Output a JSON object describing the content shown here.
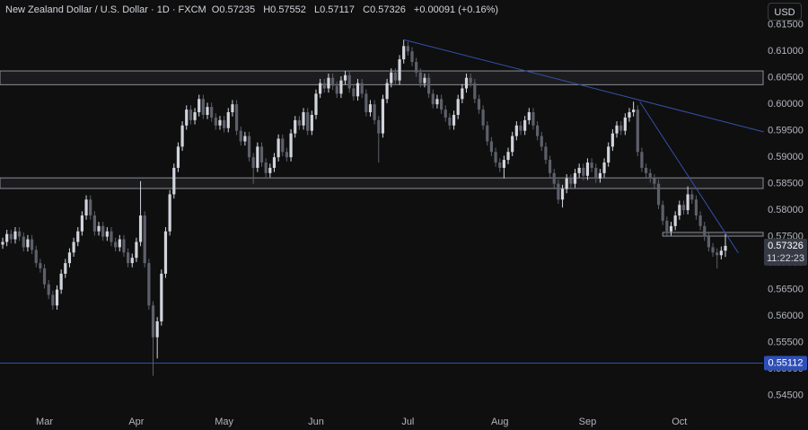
{
  "header": {
    "symbol": "New Zealand Dollar / U.S. Dollar · 1D · FXCM",
    "o_label": "O",
    "h_label": "H",
    "l_label": "L",
    "c_label": "C",
    "change": "+0.00091 (+0.16%)",
    "currency": "USD",
    "countdown": "11:22:23"
  },
  "chart_data": {
    "type": "candlestick",
    "categories": [
      null,
      null,
      null,
      null,
      null,
      null,
      null,
      null,
      null,
      null,
      "Mar",
      null,
      null,
      null,
      null,
      null,
      null,
      null,
      null,
      null,
      null,
      null,
      null,
      null,
      null,
      null,
      null,
      null,
      null,
      null,
      null,
      null,
      "Apr",
      null,
      null,
      null,
      null,
      null,
      null,
      null,
      null,
      null,
      null,
      null,
      null,
      null,
      null,
      null,
      null,
      null,
      null,
      null,
      null,
      "May",
      null,
      null,
      null,
      null,
      null,
      null,
      null,
      null,
      null,
      null,
      null,
      null,
      null,
      null,
      null,
      null,
      null,
      null,
      null,
      null,
      null,
      "Jun",
      null,
      null,
      null,
      null,
      null,
      null,
      null,
      null,
      null,
      null,
      null,
      null,
      null,
      null,
      null,
      null,
      null,
      null,
      null,
      null,
      null,
      "Jul",
      null,
      null,
      null,
      null,
      null,
      null,
      null,
      null,
      null,
      null,
      null,
      null,
      null,
      null,
      null,
      null,
      null,
      null,
      null,
      null,
      null,
      "Aug",
      null,
      null,
      null,
      null,
      null,
      null,
      null,
      null,
      null,
      null,
      null,
      null,
      null,
      null,
      null,
      null,
      null,
      null,
      null,
      null,
      "Sep",
      null,
      null,
      null,
      null,
      null,
      null,
      null,
      null,
      null,
      null,
      null,
      null,
      null,
      null,
      null,
      null,
      null,
      null,
      null,
      null,
      null,
      "Oct",
      null,
      null,
      null,
      null,
      null,
      null,
      null,
      null,
      null,
      null,
      null
    ],
    "open": [
      0.5735,
      0.574,
      0.5755,
      0.5745,
      0.576,
      0.575,
      0.573,
      0.5745,
      0.5725,
      0.57,
      0.569,
      0.566,
      0.564,
      0.562,
      0.565,
      0.568,
      0.57,
      0.572,
      0.574,
      0.576,
      0.579,
      0.582,
      0.579,
      0.576,
      0.577,
      0.575,
      0.576,
      0.574,
      0.573,
      0.5745,
      0.572,
      0.57,
      0.571,
      0.574,
      0.579,
      0.57,
      0.562,
      0.556,
      0.559,
      0.568,
      0.576,
      0.583,
      0.588,
      0.592,
      0.596,
      0.599,
      0.597,
      0.5985,
      0.601,
      0.598,
      0.5995,
      0.5975,
      0.596,
      0.597,
      0.5955,
      0.5985,
      0.6,
      0.595,
      0.593,
      0.594,
      0.59,
      0.588,
      0.592,
      0.589,
      0.587,
      0.588,
      0.59,
      0.5935,
      0.591,
      0.59,
      0.5945,
      0.597,
      0.596,
      0.5985,
      0.595,
      0.598,
      0.602,
      0.604,
      0.603,
      0.605,
      0.6035,
      0.602,
      0.6045,
      0.6055,
      0.603,
      0.6015,
      0.604,
      0.602,
      0.5985,
      0.6,
      0.597,
      0.5945,
      0.601,
      0.604,
      0.606,
      0.6045,
      0.6085,
      0.611,
      0.61,
      0.608,
      0.606,
      0.604,
      0.605,
      0.602,
      0.6,
      0.601,
      0.599,
      0.5975,
      0.596,
      0.598,
      0.601,
      0.603,
      0.605,
      0.604,
      0.601,
      0.599,
      0.596,
      0.593,
      0.591,
      0.589,
      0.588,
      0.5895,
      0.591,
      0.594,
      0.596,
      0.595,
      0.597,
      0.5985,
      0.596,
      0.594,
      0.592,
      0.5895,
      0.587,
      0.585,
      0.582,
      0.584,
      0.586,
      0.585,
      0.587,
      0.588,
      0.5865,
      0.589,
      0.588,
      0.586,
      0.587,
      0.589,
      0.592,
      0.5945,
      0.596,
      0.595,
      0.5975,
      0.5985,
      0.599,
      0.591,
      0.588,
      0.587,
      0.586,
      0.585,
      0.581,
      0.578,
      0.576,
      0.577,
      0.579,
      0.581,
      0.58,
      0.583,
      0.582,
      0.579,
      0.577,
      0.575,
      0.573,
      0.572,
      0.5715,
      0.57235
    ],
    "high": [
      0.5748,
      0.5763,
      0.5763,
      0.5768,
      0.5768,
      0.5758,
      0.5753,
      0.5753,
      0.5733,
      0.5708,
      0.5698,
      0.5668,
      0.5648,
      0.5658,
      0.5688,
      0.5708,
      0.5728,
      0.5748,
      0.5768,
      0.5798,
      0.5828,
      0.5828,
      0.5798,
      0.5778,
      0.5778,
      0.5768,
      0.5768,
      0.5748,
      0.5753,
      0.5753,
      0.5728,
      0.5718,
      0.5748,
      0.5855,
      0.5798,
      0.5708,
      0.5628,
      0.5598,
      0.5688,
      0.5768,
      0.5838,
      0.5888,
      0.5928,
      0.5968,
      0.5998,
      0.5998,
      0.5993,
      0.6018,
      0.6018,
      0.6003,
      0.6003,
      0.5983,
      0.5978,
      0.5978,
      0.5993,
      0.6008,
      0.6008,
      0.5958,
      0.5948,
      0.5948,
      0.5908,
      0.5928,
      0.5928,
      0.5898,
      0.5888,
      0.5908,
      0.5943,
      0.5943,
      0.5918,
      0.5953,
      0.5978,
      0.5978,
      0.5993,
      0.5993,
      0.5988,
      0.6028,
      0.6048,
      0.6048,
      0.6058,
      0.6058,
      0.6043,
      0.6053,
      0.6063,
      0.6063,
      0.6038,
      0.6048,
      0.6048,
      0.6028,
      0.6008,
      0.6008,
      0.5978,
      0.6018,
      0.6048,
      0.6068,
      0.6068,
      0.6093,
      0.6122,
      0.6118,
      0.6108,
      0.6088,
      0.6068,
      0.6058,
      0.6058,
      0.6028,
      0.6018,
      0.6018,
      0.5998,
      0.5983,
      0.5988,
      0.6018,
      0.6038,
      0.6058,
      0.6058,
      0.6048,
      0.6018,
      0.5998,
      0.5968,
      0.5938,
      0.5918,
      0.5898,
      0.5903,
      0.5918,
      0.5948,
      0.5968,
      0.5968,
      0.5978,
      0.5993,
      0.5993,
      0.5968,
      0.5948,
      0.5928,
      0.5903,
      0.5878,
      0.5858,
      0.5848,
      0.5868,
      0.5868,
      0.5878,
      0.5888,
      0.5888,
      0.5898,
      0.5898,
      0.5888,
      0.5878,
      0.5898,
      0.5928,
      0.5953,
      0.5968,
      0.5968,
      0.5983,
      0.5993,
      0.6005,
      0.5998,
      0.5918,
      0.5888,
      0.5878,
      0.5868,
      0.5858,
      0.5818,
      0.5788,
      0.5778,
      0.5798,
      0.5818,
      0.5818,
      0.5845,
      0.5838,
      0.5828,
      0.5798,
      0.5778,
      0.5758,
      0.5738,
      0.5728,
      0.57315,
      0.57552
    ],
    "low": [
      0.5727,
      0.5732,
      0.5737,
      0.5737,
      0.5742,
      0.5722,
      0.5722,
      0.5717,
      0.5692,
      0.5682,
      0.5652,
      0.5632,
      0.5612,
      0.5612,
      0.5642,
      0.5672,
      0.5692,
      0.5712,
      0.5732,
      0.5752,
      0.5782,
      0.5782,
      0.5752,
      0.5752,
      0.5742,
      0.5742,
      0.5732,
      0.5722,
      0.5722,
      0.5712,
      0.5692,
      0.5692,
      0.5702,
      0.5732,
      0.5692,
      0.5612,
      0.5487,
      0.552,
      0.5582,
      0.5672,
      0.5752,
      0.5822,
      0.5872,
      0.5912,
      0.5952,
      0.5962,
      0.5962,
      0.5977,
      0.5972,
      0.5972,
      0.5967,
      0.5952,
      0.5952,
      0.5947,
      0.5947,
      0.5977,
      0.5942,
      0.5922,
      0.5922,
      0.5892,
      0.585,
      0.5872,
      0.5882,
      0.5862,
      0.5862,
      0.5872,
      0.5892,
      0.5902,
      0.5892,
      0.5892,
      0.5937,
      0.5952,
      0.5952,
      0.5942,
      0.5942,
      0.5972,
      0.6012,
      0.6022,
      0.6022,
      0.6027,
      0.6012,
      0.6012,
      0.6037,
      0.6022,
      0.6007,
      0.6007,
      0.6012,
      0.5977,
      0.5977,
      0.5962,
      0.589,
      0.5937,
      0.6002,
      0.6032,
      0.6037,
      0.6037,
      0.6077,
      0.6092,
      0.6072,
      0.6052,
      0.6032,
      0.6032,
      0.6012,
      0.5992,
      0.5992,
      0.5982,
      0.5967,
      0.5952,
      0.5952,
      0.5972,
      0.6002,
      0.6022,
      0.6032,
      0.6002,
      0.5982,
      0.5952,
      0.5922,
      0.5902,
      0.5882,
      0.5872,
      0.586,
      0.5887,
      0.5902,
      0.5932,
      0.5942,
      0.5942,
      0.5962,
      0.5952,
      0.5932,
      0.5912,
      0.5887,
      0.5862,
      0.5842,
      0.5812,
      0.5805,
      0.5832,
      0.5842,
      0.5842,
      0.5862,
      0.5857,
      0.5857,
      0.5872,
      0.5852,
      0.5852,
      0.5862,
      0.5882,
      0.5912,
      0.5937,
      0.5942,
      0.5942,
      0.5967,
      0.5977,
      0.5902,
      0.5872,
      0.5862,
      0.5852,
      0.5842,
      0.5802,
      0.5772,
      0.5752,
      0.5752,
      0.5762,
      0.5782,
      0.5792,
      0.5792,
      0.5812,
      0.5782,
      0.5762,
      0.5742,
      0.5722,
      0.5712,
      0.569,
      0.5707,
      0.57117
    ],
    "close": [
      0.574,
      0.5755,
      0.5745,
      0.576,
      0.575,
      0.573,
      0.5745,
      0.5725,
      0.57,
      0.569,
      0.566,
      0.564,
      0.562,
      0.565,
      0.568,
      0.57,
      0.572,
      0.574,
      0.576,
      0.579,
      0.582,
      0.579,
      0.576,
      0.577,
      0.575,
      0.576,
      0.574,
      0.573,
      0.5745,
      0.572,
      0.57,
      0.571,
      0.574,
      0.579,
      0.57,
      0.562,
      0.556,
      0.559,
      0.568,
      0.576,
      0.583,
      0.588,
      0.592,
      0.596,
      0.599,
      0.597,
      0.5985,
      0.601,
      0.598,
      0.5995,
      0.5975,
      0.596,
      0.597,
      0.5955,
      0.5985,
      0.6,
      0.595,
      0.593,
      0.594,
      0.59,
      0.588,
      0.592,
      0.589,
      0.587,
      0.588,
      0.59,
      0.5935,
      0.591,
      0.59,
      0.5945,
      0.597,
      0.596,
      0.5985,
      0.595,
      0.598,
      0.602,
      0.604,
      0.603,
      0.605,
      0.6035,
      0.602,
      0.6045,
      0.6055,
      0.603,
      0.6015,
      0.604,
      0.602,
      0.5985,
      0.6,
      0.597,
      0.5945,
      0.601,
      0.604,
      0.606,
      0.6045,
      0.6085,
      0.611,
      0.61,
      0.608,
      0.606,
      0.604,
      0.605,
      0.602,
      0.6,
      0.601,
      0.599,
      0.5975,
      0.596,
      0.598,
      0.601,
      0.603,
      0.605,
      0.604,
      0.601,
      0.599,
      0.596,
      0.593,
      0.591,
      0.589,
      0.588,
      0.5895,
      0.591,
      0.594,
      0.596,
      0.595,
      0.597,
      0.5985,
      0.596,
      0.594,
      0.592,
      0.5895,
      0.587,
      0.585,
      0.582,
      0.584,
      0.586,
      0.585,
      0.587,
      0.588,
      0.5865,
      0.589,
      0.588,
      0.586,
      0.587,
      0.589,
      0.592,
      0.5945,
      0.596,
      0.595,
      0.5975,
      0.5985,
      0.599,
      0.591,
      0.588,
      0.587,
      0.586,
      0.585,
      0.581,
      0.578,
      0.576,
      0.577,
      0.579,
      0.581,
      0.58,
      0.583,
      0.582,
      0.579,
      0.577,
      0.575,
      0.573,
      0.572,
      0.5715,
      0.57235,
      0.57326
    ],
    "up_color": "#d1d4dc",
    "down_color": "#5d606b",
    "ylim": [
      0.5417,
      0.6197
    ],
    "yticks": [
      {
        "value": 0.545,
        "label": "0.54500"
      },
      {
        "value": 0.55,
        "label": "0.55000"
      },
      {
        "value": 0.555,
        "label": "0.55500"
      },
      {
        "value": 0.56,
        "label": "0.56000"
      },
      {
        "value": 0.565,
        "label": "0.56500"
      },
      {
        "value": 0.57,
        "label": "0.57000"
      },
      {
        "value": 0.575,
        "label": "0.57500"
      },
      {
        "value": 0.58,
        "label": "0.58000"
      },
      {
        "value": 0.585,
        "label": "0.58500"
      },
      {
        "value": 0.59,
        "label": "0.59000"
      },
      {
        "value": 0.595,
        "label": "0.59500"
      },
      {
        "value": 0.6,
        "label": "0.60000"
      },
      {
        "value": 0.605,
        "label": "0.60500"
      },
      {
        "value": 0.61,
        "label": "0.61000"
      },
      {
        "value": 0.615,
        "label": "0.61500"
      }
    ],
    "grid": false,
    "zones": [
      {
        "low": 0.6037,
        "high": 0.6063
      },
      {
        "low": 0.5841,
        "high": 0.5861
      },
      {
        "low": 0.5751,
        "high": 0.5758,
        "start": 158
      }
    ],
    "hline": {
      "value": 0.55112,
      "color": "#2e4fb8"
    },
    "trendlines": [
      {
        "start": [
          96,
          0.6122
        ],
        "end": [
          182.15,
          0.5948
        ]
      },
      {
        "start": [
          152.5,
          0.6005
        ],
        "end": [
          176.1,
          0.5719
        ]
      }
    ],
    "trendline_color": "#3451a8"
  }
}
